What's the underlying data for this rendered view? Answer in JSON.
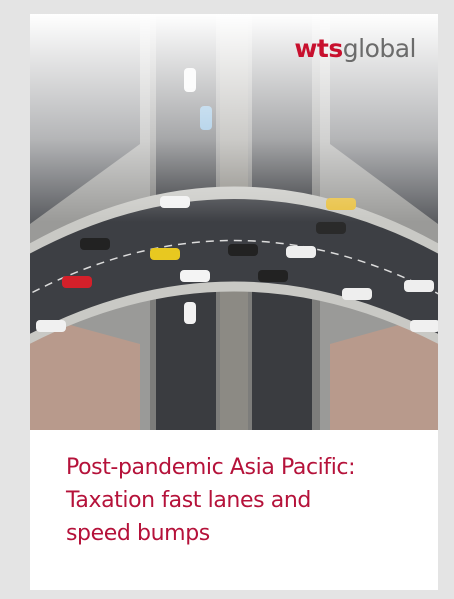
{
  "logo": {
    "brand": "wts",
    "suffix": "global"
  },
  "title": {
    "lines": [
      "Post-pandemic Asia Pacific:",
      "Taxation fast lanes and",
      "speed bumps"
    ]
  }
}
